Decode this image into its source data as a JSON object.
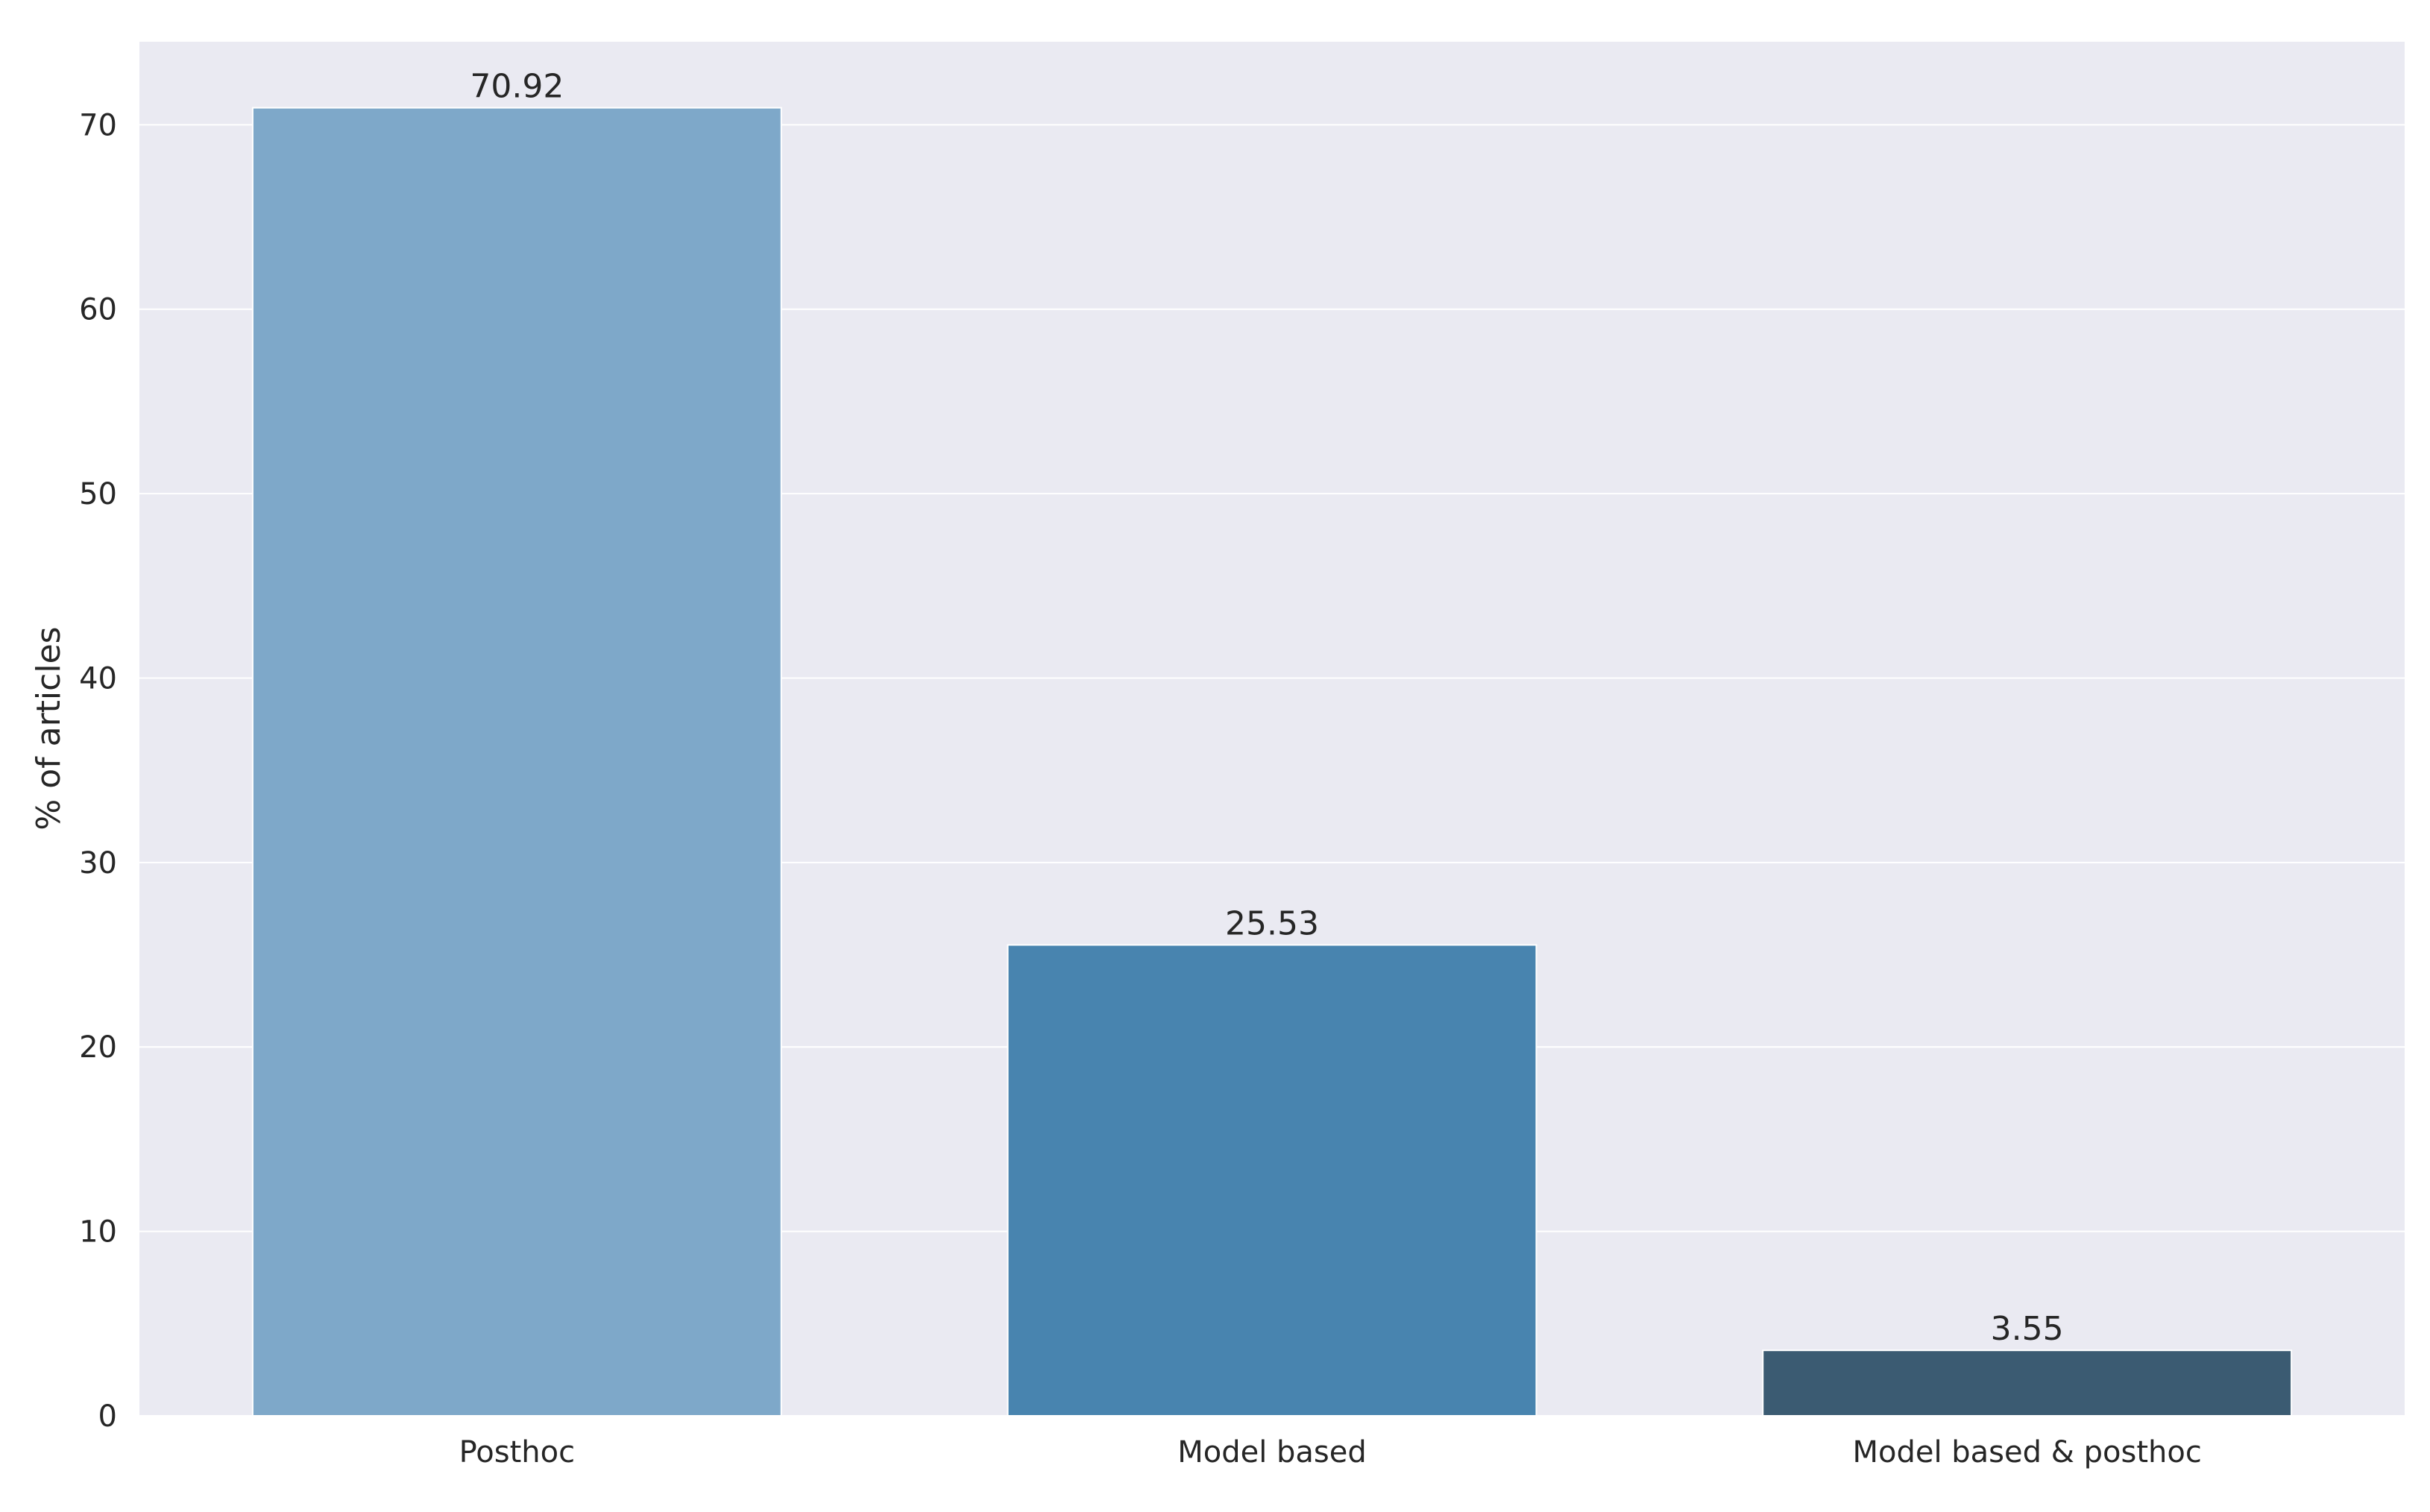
{
  "chart_data": {
    "type": "bar",
    "categories": [
      "Posthoc",
      "Model based",
      "Model based & posthoc"
    ],
    "values": [
      70.92,
      25.53,
      3.55
    ],
    "value_labels": [
      "70.92",
      "25.53",
      "3.55"
    ],
    "title": "",
    "xlabel": "",
    "ylabel": "% of articles",
    "ylim": [
      0,
      74.5
    ],
    "yticks": [
      0,
      10,
      20,
      30,
      40,
      50,
      60,
      70
    ],
    "grid": true,
    "legend": "none",
    "colors": {
      "plot_background": "#eaeaf2",
      "grid": "#ffffff",
      "text": "#262626",
      "bars": [
        "#7ea8c9",
        "#4884af",
        "#3b5b72"
      ]
    }
  }
}
